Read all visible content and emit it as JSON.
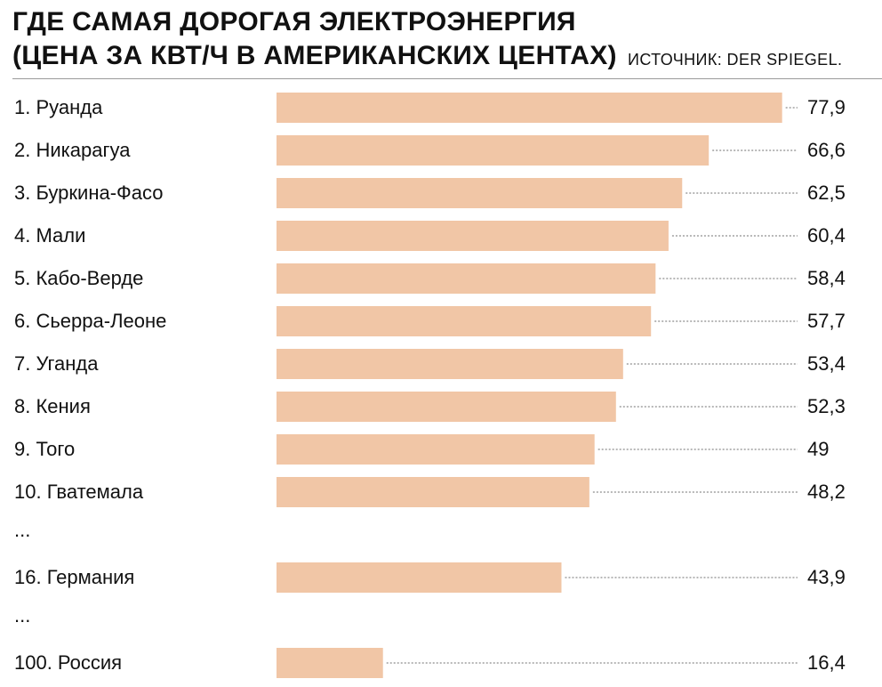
{
  "chart_data": {
    "type": "bar",
    "orientation": "horizontal",
    "title": "ГДЕ САМАЯ ДОРОГАЯ ЭЛЕКТРОЭНЕРГИЯ",
    "subtitle": "(ЦЕНА ЗА КВТ/Ч В АМЕРИКАНСКИХ ЦЕНТАХ)",
    "source": "ИСТОЧНИК: DER SPIEGEL.",
    "categories": [
      "1. Руанда",
      "2. Никарагуа",
      "3. Буркина-Фасо",
      "4. Мали",
      "5. Кабо-Верде",
      "6. Сьерра-Леоне",
      "7. Уганда",
      "8. Кения",
      "9. Того",
      "10. Гватемала",
      "16. Германия",
      "100. Россия"
    ],
    "values": [
      77.9,
      66.6,
      62.5,
      60.4,
      58.4,
      57.7,
      53.4,
      52.3,
      49,
      48.2,
      43.9,
      16.4
    ],
    "value_labels": [
      "77,9",
      "66,6",
      "62,5",
      "60,4",
      "58,4",
      "57,7",
      "53,4",
      "52,3",
      "49",
      "48,2",
      "43,9",
      "16,4"
    ],
    "gaps_after": [
      "10. Гватемала",
      "16. Германия"
    ],
    "ellipsis": "...",
    "bar_color": "#f1c6a6",
    "leader_color": "#8c8c8c",
    "grid": false,
    "legend": "none"
  }
}
